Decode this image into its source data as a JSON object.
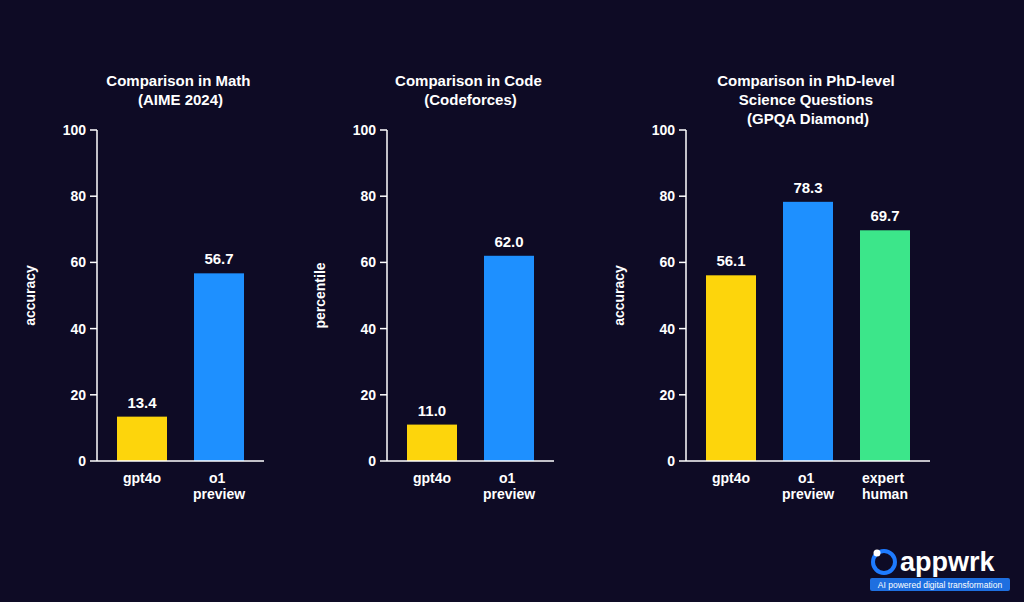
{
  "chart_data": [
    {
      "type": "bar",
      "title": "Comparison in Math (AIME 2024)",
      "ylabel": "accuracy",
      "categories": [
        "gpt4o",
        "o1 preview"
      ],
      "values": [
        13.4,
        56.7
      ],
      "colors": [
        "#fdd50c",
        "#1e90ff"
      ],
      "ylim": [
        0,
        100
      ],
      "yticks": [
        0,
        20,
        40,
        60,
        80,
        100
      ],
      "grid": false,
      "data_labels": true
    },
    {
      "type": "bar",
      "title": "Comparison in Code (Codeforces)",
      "ylabel": "percentile",
      "categories": [
        "gpt4o",
        "o1 preview"
      ],
      "values": [
        11.0,
        62.0
      ],
      "value_labels": [
        "11.0",
        "62.0"
      ],
      "colors": [
        "#fdd50c",
        "#1e90ff"
      ],
      "ylim": [
        0,
        100
      ],
      "yticks": [
        0,
        20,
        40,
        60,
        80,
        100
      ],
      "grid": false,
      "data_labels": true
    },
    {
      "type": "bar",
      "title": "Comparison in PhD-level Science Questions (GPQA Diamond)",
      "ylabel": "accuracy",
      "categories": [
        "gpt4o",
        "o1 preview",
        "expert human"
      ],
      "values": [
        56.1,
        78.3,
        69.7
      ],
      "colors": [
        "#fdd50c",
        "#1e90ff",
        "#3ce68a"
      ],
      "ylim": [
        0,
        100
      ],
      "yticks": [
        0,
        20,
        40,
        60,
        80,
        100
      ],
      "grid": false,
      "data_labels": true
    }
  ],
  "branding": {
    "name": "appwrk",
    "tagline": "AI powered digital transformation"
  }
}
